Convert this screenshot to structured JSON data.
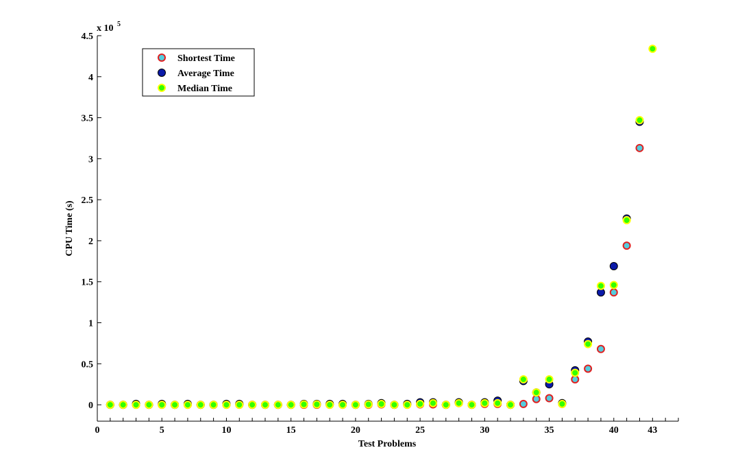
{
  "chart_data": {
    "type": "scatter",
    "xlabel": "Test Problems",
    "ylabel": "CPU Time (s)",
    "y_multiplier_base": "x 10",
    "y_multiplier_exp": "5",
    "xlim": [
      0,
      45
    ],
    "ylim": [
      -0.2,
      4.5
    ],
    "x_ticks": [
      0,
      5,
      10,
      15,
      20,
      25,
      30,
      35,
      40,
      43
    ],
    "x_tick_labels": [
      "0",
      "5",
      "10",
      "15",
      "20",
      "25",
      "30",
      "35",
      "40",
      "43"
    ],
    "y_ticks": [
      0,
      0.5,
      1,
      1.5,
      2,
      2.5,
      3,
      3.5,
      4,
      4.5
    ],
    "y_tick_labels": [
      "0",
      "0.5",
      "1",
      "1.5",
      "2",
      "2.5",
      "3",
      "3.5",
      "4",
      "4.5"
    ],
    "grid": false,
    "legend_position": "top-left",
    "x": [
      1,
      2,
      3,
      4,
      5,
      6,
      7,
      8,
      9,
      10,
      11,
      12,
      13,
      14,
      15,
      16,
      17,
      18,
      19,
      20,
      21,
      22,
      23,
      24,
      25,
      26,
      27,
      28,
      29,
      30,
      31,
      32,
      33,
      34,
      35,
      36,
      37,
      38,
      39,
      40,
      41,
      42,
      43
    ],
    "series": [
      {
        "name": "Shortest Time",
        "marker": "circle-red-edge-cyan-fill",
        "face_color": "#55ccdd",
        "edge_color": "#e02020",
        "values": [
          0,
          0,
          0,
          0,
          0,
          0,
          0,
          0,
          0,
          0,
          0,
          0,
          0,
          0,
          0,
          0,
          0,
          0,
          0,
          0,
          0,
          0.005,
          0,
          0,
          0.005,
          0.005,
          0,
          0.02,
          0,
          0.01,
          0.01,
          0,
          0.01,
          0.07,
          0.08,
          0.01,
          0.31,
          0.44,
          0.68,
          1.37,
          1.94,
          3.13,
          null
        ]
      },
      {
        "name": "Average Time",
        "marker": "circle-navy-fill",
        "face_color": "#0a1aa8",
        "edge_color": "#000000",
        "values": [
          0,
          0,
          0.01,
          0,
          0.01,
          0,
          0.01,
          0,
          0,
          0.01,
          0.01,
          0,
          0,
          0,
          0,
          0.01,
          0.01,
          0.01,
          0.01,
          0,
          0.01,
          0.02,
          0,
          0.01,
          0.03,
          0.03,
          0,
          0.03,
          0,
          0.03,
          0.05,
          0,
          0.29,
          0.15,
          0.25,
          0.02,
          0.42,
          0.77,
          1.37,
          1.69,
          2.27,
          3.45,
          null
        ]
      },
      {
        "name": "Median Time",
        "marker": "circle-yellow-edge-green-fill",
        "face_color": "#33ff00",
        "edge_color": "#ffff00",
        "values": [
          0,
          0,
          0,
          0,
          0,
          0,
          0,
          0,
          0,
          0,
          0,
          0,
          0,
          0,
          0,
          0.005,
          0.005,
          0,
          0,
          0,
          0.005,
          0.01,
          0,
          0,
          0.01,
          0.02,
          0,
          0.02,
          0,
          0.02,
          0.02,
          0,
          0.31,
          0.15,
          0.31,
          0.01,
          0.39,
          0.74,
          1.45,
          1.46,
          2.25,
          3.47,
          4.34
        ]
      }
    ]
  }
}
